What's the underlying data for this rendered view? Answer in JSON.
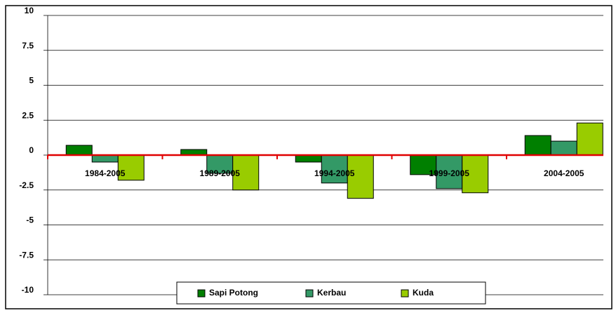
{
  "chart_data": {
    "type": "bar",
    "categories": [
      "1984-2005",
      "1989-2005",
      "1994-2005",
      "1999-2005",
      "2004-2005"
    ],
    "series": [
      {
        "name": "Sapi Potong",
        "color": "#007f00",
        "values": [
          0.7,
          0.4,
          -0.5,
          -1.4,
          1.4
        ]
      },
      {
        "name": "Kerbau",
        "color": "#339966",
        "values": [
          -0.5,
          -1.3,
          -2.0,
          -2.4,
          1.0
        ]
      },
      {
        "name": "Kuda",
        "color": "#99cc00",
        "values": [
          -1.8,
          -2.5,
          -3.1,
          -2.7,
          2.3
        ]
      }
    ],
    "ylim": [
      -10,
      10
    ],
    "yticks": [
      10,
      7.5,
      5,
      2.5,
      0,
      -2.5,
      -5,
      -7.5,
      -10
    ],
    "grid": true,
    "zero_line_color": "#e00000",
    "legend": "bottom"
  }
}
